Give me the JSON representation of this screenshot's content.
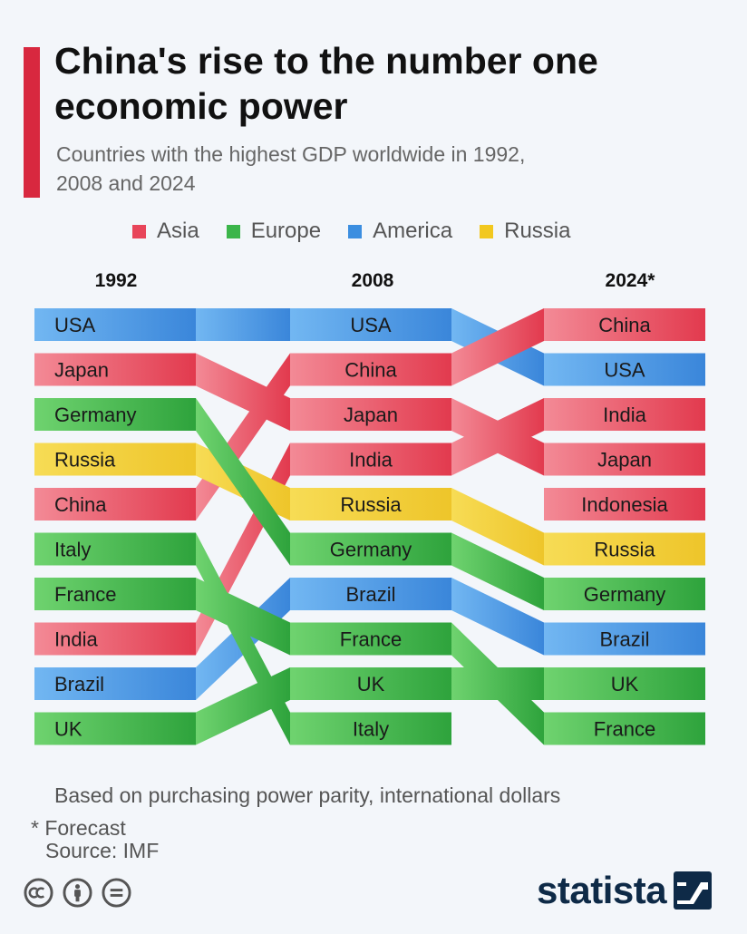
{
  "title": "China's rise to the number one economic power",
  "subtitle": "Countries with the highest GDP worldwide in 1992, 2008 and 2024",
  "legend": [
    {
      "label": "Asia",
      "color": "#e8455a"
    },
    {
      "label": "Europe",
      "color": "#3bb54a"
    },
    {
      "label": "America",
      "color": "#3b8ee0"
    },
    {
      "label": "Russia",
      "color": "#f2c81f"
    }
  ],
  "chart_data": {
    "type": "bump",
    "years": [
      "1992",
      "2008",
      "2024*"
    ],
    "region_colors": {
      "Asia": {
        "light": "#f38a96",
        "dark": "#e23a4e"
      },
      "Europe": {
        "light": "#6fd36f",
        "dark": "#2ea33c"
      },
      "America": {
        "light": "#72b7f2",
        "dark": "#3a86da"
      },
      "Russia": {
        "light": "#f7dc55",
        "dark": "#eec52a"
      }
    },
    "countries": [
      {
        "name": "USA",
        "region": "America",
        "ranks": [
          1,
          1,
          2
        ]
      },
      {
        "name": "China",
        "region": "Asia",
        "ranks": [
          5,
          2,
          1
        ]
      },
      {
        "name": "Japan",
        "region": "Asia",
        "ranks": [
          2,
          3,
          4
        ]
      },
      {
        "name": "India",
        "region": "Asia",
        "ranks": [
          8,
          4,
          3
        ]
      },
      {
        "name": "Russia",
        "region": "Russia",
        "ranks": [
          4,
          5,
          6
        ]
      },
      {
        "name": "Germany",
        "region": "Europe",
        "ranks": [
          3,
          6,
          7
        ]
      },
      {
        "name": "Brazil",
        "region": "America",
        "ranks": [
          9,
          7,
          8
        ]
      },
      {
        "name": "France",
        "region": "Europe",
        "ranks": [
          7,
          8,
          10
        ]
      },
      {
        "name": "UK",
        "region": "Europe",
        "ranks": [
          10,
          9,
          9
        ]
      },
      {
        "name": "Italy",
        "region": "Europe",
        "ranks": [
          6,
          10,
          null
        ]
      },
      {
        "name": "Indonesia",
        "region": "Asia",
        "ranks": [
          null,
          null,
          5
        ]
      }
    ]
  },
  "footnote": "Based on purchasing power parity, international dollars",
  "forecast_note": "* Forecast",
  "source": "Source: IMF",
  "brand": "statista"
}
